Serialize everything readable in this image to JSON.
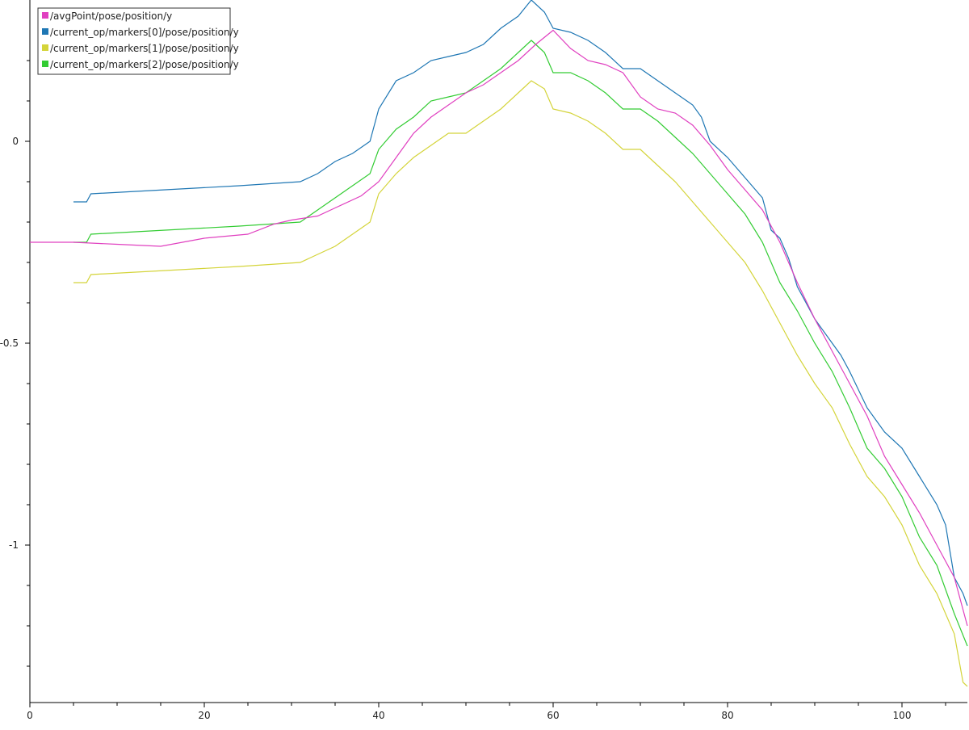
{
  "chart_data": {
    "type": "line",
    "title": "",
    "xlabel": "",
    "ylabel": "",
    "xlim": [
      0,
      107.5
    ],
    "ylim": [
      -1.39,
      0.35
    ],
    "x_ticks_major": [
      0,
      20,
      40,
      60,
      80,
      100
    ],
    "x_tick_labels": [
      "0",
      "20",
      "40",
      "60",
      "80",
      "100"
    ],
    "x_ticks_minor": [
      5,
      10,
      15,
      25,
      30,
      35,
      45,
      50,
      55,
      65,
      70,
      75,
      85,
      90,
      95,
      105
    ],
    "y_ticks_major": [
      0,
      -0.5,
      -1
    ],
    "y_tick_labels": [
      "0",
      "-0.5",
      "-1"
    ],
    "y_ticks_minor": [
      0.2,
      0.1,
      -0.1,
      -0.2,
      -0.3,
      -0.4,
      -0.6,
      -0.7,
      -0.8,
      -0.9,
      -1.1,
      -1.2,
      -1.3
    ],
    "grid": false,
    "legend_position": "top-left",
    "series": [
      {
        "name": "/avgPoint/pose/position/y",
        "color": "#e040c0",
        "points": [
          [
            0,
            -0.25
          ],
          [
            5,
            -0.25
          ],
          [
            10,
            -0.255
          ],
          [
            15,
            -0.26
          ],
          [
            20,
            -0.24
          ],
          [
            25,
            -0.23
          ],
          [
            28,
            -0.205
          ],
          [
            30,
            -0.195
          ],
          [
            33,
            -0.185
          ],
          [
            35,
            -0.165
          ],
          [
            38,
            -0.135
          ],
          [
            40,
            -0.1
          ],
          [
            42,
            -0.04
          ],
          [
            44,
            0.02
          ],
          [
            46,
            0.06
          ],
          [
            48,
            0.09
          ],
          [
            50,
            0.12
          ],
          [
            52,
            0.14
          ],
          [
            54,
            0.17
          ],
          [
            56,
            0.2
          ],
          [
            58,
            0.24
          ],
          [
            60,
            0.275
          ],
          [
            62,
            0.23
          ],
          [
            64,
            0.2
          ],
          [
            66,
            0.19
          ],
          [
            68,
            0.17
          ],
          [
            70,
            0.11
          ],
          [
            72,
            0.08
          ],
          [
            74,
            0.07
          ],
          [
            76,
            0.04
          ],
          [
            78,
            -0.01
          ],
          [
            80,
            -0.07
          ],
          [
            82,
            -0.12
          ],
          [
            84,
            -0.17
          ],
          [
            86,
            -0.25
          ],
          [
            88,
            -0.35
          ],
          [
            90,
            -0.44
          ],
          [
            92,
            -0.52
          ],
          [
            94,
            -0.6
          ],
          [
            96,
            -0.68
          ],
          [
            98,
            -0.78
          ],
          [
            100,
            -0.85
          ],
          [
            102,
            -0.92
          ],
          [
            104,
            -1.0
          ],
          [
            106,
            -1.08
          ],
          [
            107.5,
            -1.2
          ]
        ]
      },
      {
        "name": "/current_op/markers[0]/pose/position/y",
        "color": "#1f77b4",
        "points": [
          [
            5,
            -0.15
          ],
          [
            6.5,
            -0.15
          ],
          [
            7,
            -0.13
          ],
          [
            24,
            -0.11
          ],
          [
            31,
            -0.1
          ],
          [
            33,
            -0.08
          ],
          [
            35,
            -0.05
          ],
          [
            37,
            -0.03
          ],
          [
            39,
            0.0
          ],
          [
            40,
            0.08
          ],
          [
            42,
            0.15
          ],
          [
            44,
            0.17
          ],
          [
            46,
            0.2
          ],
          [
            48,
            0.21
          ],
          [
            50,
            0.22
          ],
          [
            52,
            0.24
          ],
          [
            54,
            0.28
          ],
          [
            56,
            0.31
          ],
          [
            57.5,
            0.35
          ],
          [
            59,
            0.32
          ],
          [
            60,
            0.28
          ],
          [
            62,
            0.27
          ],
          [
            64,
            0.25
          ],
          [
            66,
            0.22
          ],
          [
            68,
            0.18
          ],
          [
            70,
            0.18
          ],
          [
            72,
            0.15
          ],
          [
            74,
            0.12
          ],
          [
            76,
            0.09
          ],
          [
            77,
            0.06
          ],
          [
            78,
            0.0
          ],
          [
            80,
            -0.04
          ],
          [
            82,
            -0.09
          ],
          [
            84,
            -0.14
          ],
          [
            85,
            -0.22
          ],
          [
            86,
            -0.24
          ],
          [
            87,
            -0.29
          ],
          [
            88,
            -0.36
          ],
          [
            90,
            -0.44
          ],
          [
            92,
            -0.5
          ],
          [
            93,
            -0.53
          ],
          [
            94,
            -0.57
          ],
          [
            96,
            -0.66
          ],
          [
            98,
            -0.72
          ],
          [
            100,
            -0.76
          ],
          [
            102,
            -0.83
          ],
          [
            104,
            -0.9
          ],
          [
            105,
            -0.95
          ],
          [
            106,
            -1.08
          ],
          [
            107,
            -1.12
          ],
          [
            107.5,
            -1.15
          ]
        ]
      },
      {
        "name": "/current_op/markers[1]/pose/position/y",
        "color": "#d4d43a",
        "points": [
          [
            5,
            -0.35
          ],
          [
            6.5,
            -0.35
          ],
          [
            7,
            -0.33
          ],
          [
            24,
            -0.31
          ],
          [
            31,
            -0.3
          ],
          [
            33,
            -0.28
          ],
          [
            35,
            -0.26
          ],
          [
            37,
            -0.23
          ],
          [
            39,
            -0.2
          ],
          [
            40,
            -0.13
          ],
          [
            42,
            -0.08
          ],
          [
            44,
            -0.04
          ],
          [
            46,
            -0.01
          ],
          [
            48,
            0.02
          ],
          [
            50,
            0.02
          ],
          [
            52,
            0.05
          ],
          [
            54,
            0.08
          ],
          [
            56,
            0.12
          ],
          [
            57.5,
            0.15
          ],
          [
            59,
            0.13
          ],
          [
            60,
            0.08
          ],
          [
            62,
            0.07
          ],
          [
            64,
            0.05
          ],
          [
            66,
            0.02
          ],
          [
            68,
            -0.02
          ],
          [
            70,
            -0.02
          ],
          [
            72,
            -0.06
          ],
          [
            74,
            -0.1
          ],
          [
            76,
            -0.15
          ],
          [
            78,
            -0.2
          ],
          [
            80,
            -0.25
          ],
          [
            82,
            -0.3
          ],
          [
            84,
            -0.37
          ],
          [
            86,
            -0.45
          ],
          [
            88,
            -0.53
          ],
          [
            90,
            -0.6
          ],
          [
            92,
            -0.66
          ],
          [
            94,
            -0.75
          ],
          [
            96,
            -0.83
          ],
          [
            98,
            -0.88
          ],
          [
            100,
            -0.95
          ],
          [
            102,
            -1.05
          ],
          [
            104,
            -1.12
          ],
          [
            106,
            -1.22
          ],
          [
            107,
            -1.34
          ],
          [
            107.5,
            -1.35
          ]
        ]
      },
      {
        "name": "/current_op/markers[2]/pose/position/y",
        "color": "#33cc33",
        "points": [
          [
            5,
            -0.25
          ],
          [
            6.5,
            -0.25
          ],
          [
            7,
            -0.23
          ],
          [
            24,
            -0.21
          ],
          [
            31,
            -0.2
          ],
          [
            33,
            -0.17
          ],
          [
            35,
            -0.14
          ],
          [
            37,
            -0.11
          ],
          [
            39,
            -0.08
          ],
          [
            40,
            -0.02
          ],
          [
            42,
            0.03
          ],
          [
            44,
            0.06
          ],
          [
            46,
            0.1
          ],
          [
            48,
            0.11
          ],
          [
            50,
            0.12
          ],
          [
            52,
            0.15
          ],
          [
            54,
            0.18
          ],
          [
            56,
            0.22
          ],
          [
            57.5,
            0.25
          ],
          [
            59,
            0.22
          ],
          [
            60,
            0.17
          ],
          [
            62,
            0.17
          ],
          [
            64,
            0.15
          ],
          [
            66,
            0.12
          ],
          [
            68,
            0.08
          ],
          [
            70,
            0.08
          ],
          [
            72,
            0.05
          ],
          [
            74,
            0.01
          ],
          [
            76,
            -0.03
          ],
          [
            78,
            -0.08
          ],
          [
            80,
            -0.13
          ],
          [
            82,
            -0.18
          ],
          [
            84,
            -0.25
          ],
          [
            86,
            -0.35
          ],
          [
            88,
            -0.42
          ],
          [
            90,
            -0.5
          ],
          [
            92,
            -0.57
          ],
          [
            94,
            -0.66
          ],
          [
            96,
            -0.76
          ],
          [
            98,
            -0.81
          ],
          [
            100,
            -0.88
          ],
          [
            102,
            -0.98
          ],
          [
            104,
            -1.05
          ],
          [
            106,
            -1.17
          ],
          [
            107.5,
            -1.25
          ]
        ]
      }
    ]
  }
}
